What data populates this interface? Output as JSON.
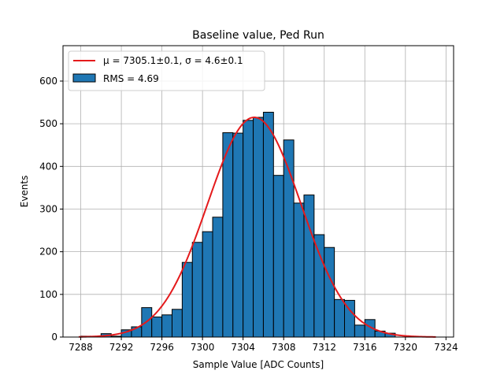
{
  "chart_data": {
    "type": "bar",
    "title": "Baseline value, Ped Run",
    "xlabel": "Sample Value [ADC Counts]",
    "ylabel": "Events",
    "xlim": [
      7286.25,
      7324.75
    ],
    "ylim": [
      0,
      683
    ],
    "xticks": [
      7288,
      7292,
      7296,
      7300,
      7304,
      7308,
      7312,
      7316,
      7320,
      7324
    ],
    "yticks": [
      0,
      100,
      200,
      300,
      400,
      500,
      600
    ],
    "grid": true,
    "legend_position": "top-left",
    "bin_width": 1,
    "bin_start": 7288,
    "hist_values": [
      2,
      0,
      8,
      2,
      17,
      24,
      69,
      47,
      52,
      65,
      175,
      222,
      247,
      281,
      479,
      478,
      508,
      515,
      527,
      379,
      462,
      314,
      333,
      240,
      210,
      88,
      86,
      28,
      41,
      14,
      9
    ],
    "fit": {
      "type": "gaussian",
      "mu": 7305.1,
      "sigma": 4.6,
      "amplitude": 515,
      "x_range": [
        7287.8,
        7323
      ]
    },
    "series": [
      {
        "name": "μ = 7305.1±0.1, σ = 4.6±0.1",
        "kind": "line",
        "color": "#e41a1c"
      },
      {
        "name": "RMS = 4.69",
        "kind": "bar",
        "color": "#1f77b4"
      }
    ]
  }
}
